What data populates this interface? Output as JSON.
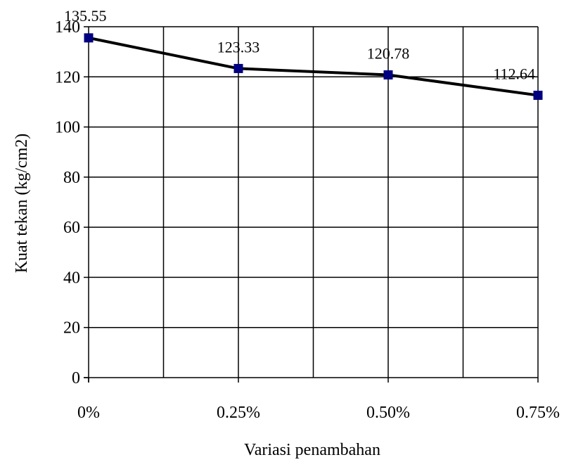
{
  "chart_data": {
    "type": "line",
    "title": "",
    "xlabel": "Variasi penambahan",
    "ylabel": "Kuat tekan (kg/cm2)",
    "categories": [
      "0%",
      "0.25%",
      "0.50%",
      "0.75%"
    ],
    "series": [
      {
        "values": [
          135.55,
          123.33,
          120.78,
          112.64
        ],
        "data_labels": [
          "135.55",
          "123.33",
          "120.78",
          "112.64"
        ],
        "line_color": "#000000",
        "marker_color": "#000080",
        "marker": "square"
      }
    ],
    "ylim": [
      0,
      140
    ],
    "yticks": [
      0,
      20,
      40,
      60,
      80,
      100,
      120,
      140
    ],
    "grid": true,
    "legend": "none"
  }
}
